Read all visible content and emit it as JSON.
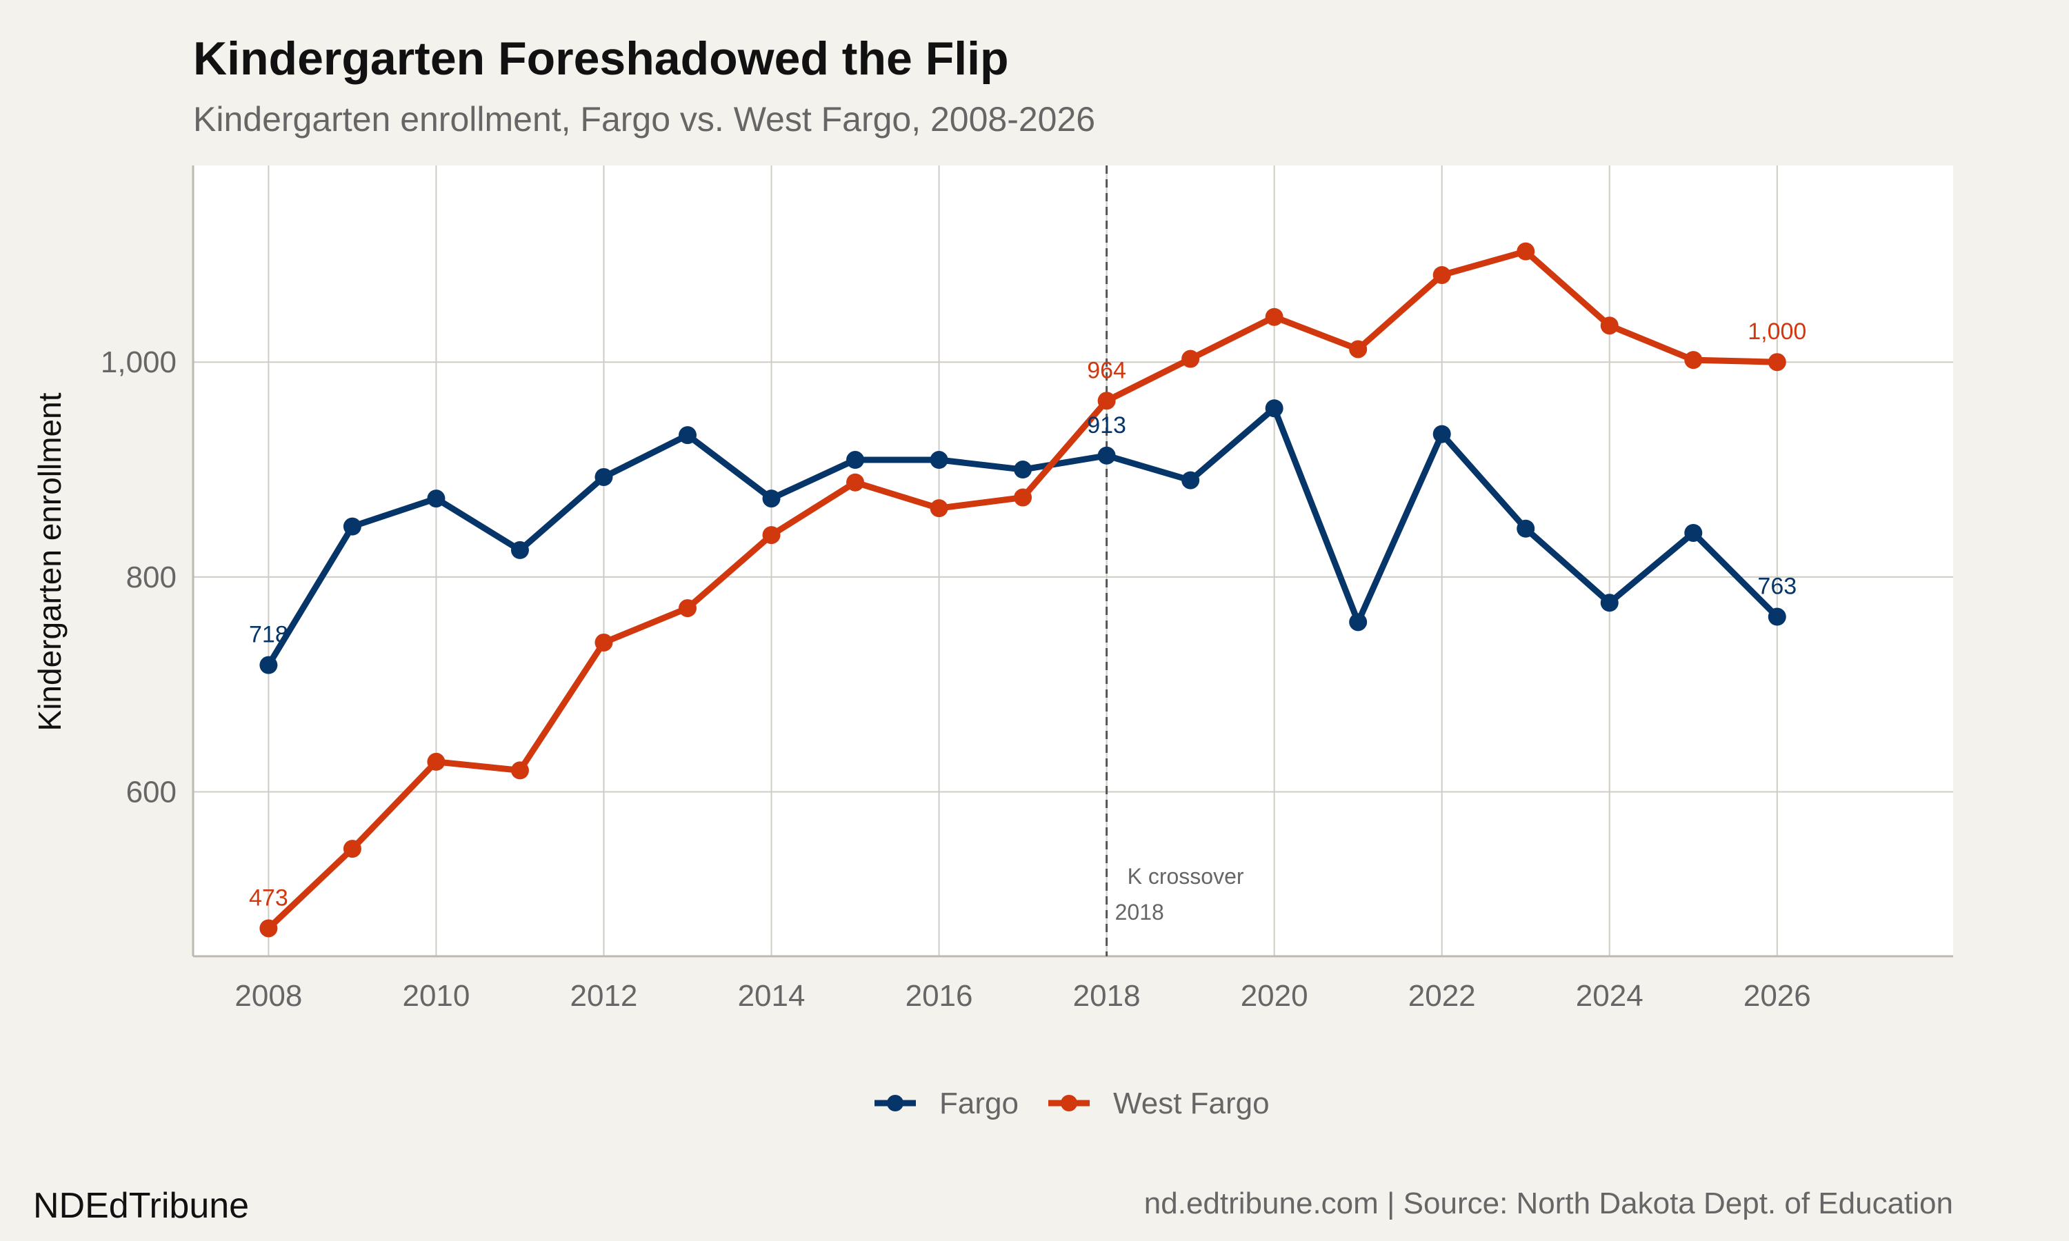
{
  "header": {
    "title": "Kindergarten Foreshadowed the Flip",
    "subtitle": "Kindergarten enrollment, Fargo vs. West Fargo, 2008-2026"
  },
  "footer": {
    "brand": "NDEdTribune",
    "source": "nd.edtribune.com | Source: North Dakota Dept. of Education"
  },
  "colors": {
    "fargo": "#06356a",
    "west_fargo": "#d1380e",
    "background": "#f4f2ed",
    "panel": "#ffffff",
    "grid": "#cfccc5"
  },
  "chart_data": {
    "type": "line",
    "title": "Kindergarten Foreshadowed the Flip",
    "subtitle": "Kindergarten enrollment, Fargo vs. West Fargo, 2008-2026",
    "xlabel": "",
    "ylabel": "Kindergarten enrollment",
    "xlim": [
      2007.1,
      2028.1
    ],
    "ylim": [
      447,
      1183
    ],
    "x_ticks": [
      2008,
      2010,
      2012,
      2014,
      2016,
      2018,
      2020,
      2022,
      2024,
      2026
    ],
    "y_ticks": [
      600,
      800,
      1000
    ],
    "y_tick_labels": [
      "600",
      "800",
      "1,000"
    ],
    "grid": true,
    "legend_position": "bottom",
    "x": [
      2008,
      2009,
      2010,
      2011,
      2012,
      2013,
      2014,
      2015,
      2016,
      2017,
      2018,
      2019,
      2020,
      2021,
      2022,
      2023,
      2024,
      2025,
      2026
    ],
    "series": [
      {
        "name": "Fargo",
        "color": "#06356a",
        "values": [
          718,
          847,
          873,
          825,
          893,
          932,
          873,
          909,
          909,
          900,
          913,
          890,
          957,
          758,
          933,
          845,
          776,
          841,
          763
        ]
      },
      {
        "name": "West Fargo",
        "color": "#d1380e",
        "values": [
          473,
          547,
          628,
          620,
          739,
          771,
          839,
          888,
          864,
          874,
          964,
          1003,
          1042,
          1012,
          1081,
          1103,
          1034,
          1002,
          1000
        ]
      }
    ],
    "data_labels": [
      {
        "series": 0,
        "x": 2008,
        "text": "718"
      },
      {
        "series": 0,
        "x": 2018,
        "text": "913"
      },
      {
        "series": 0,
        "x": 2026,
        "text": "763"
      },
      {
        "series": 1,
        "x": 2008,
        "text": "473"
      },
      {
        "series": 1,
        "x": 2018,
        "text": "964"
      },
      {
        "series": 1,
        "x": 2026,
        "text": "1,000"
      }
    ],
    "annotations": {
      "vline_x": 2018,
      "label_line1": "K crossover",
      "label_line2": "2018"
    }
  }
}
